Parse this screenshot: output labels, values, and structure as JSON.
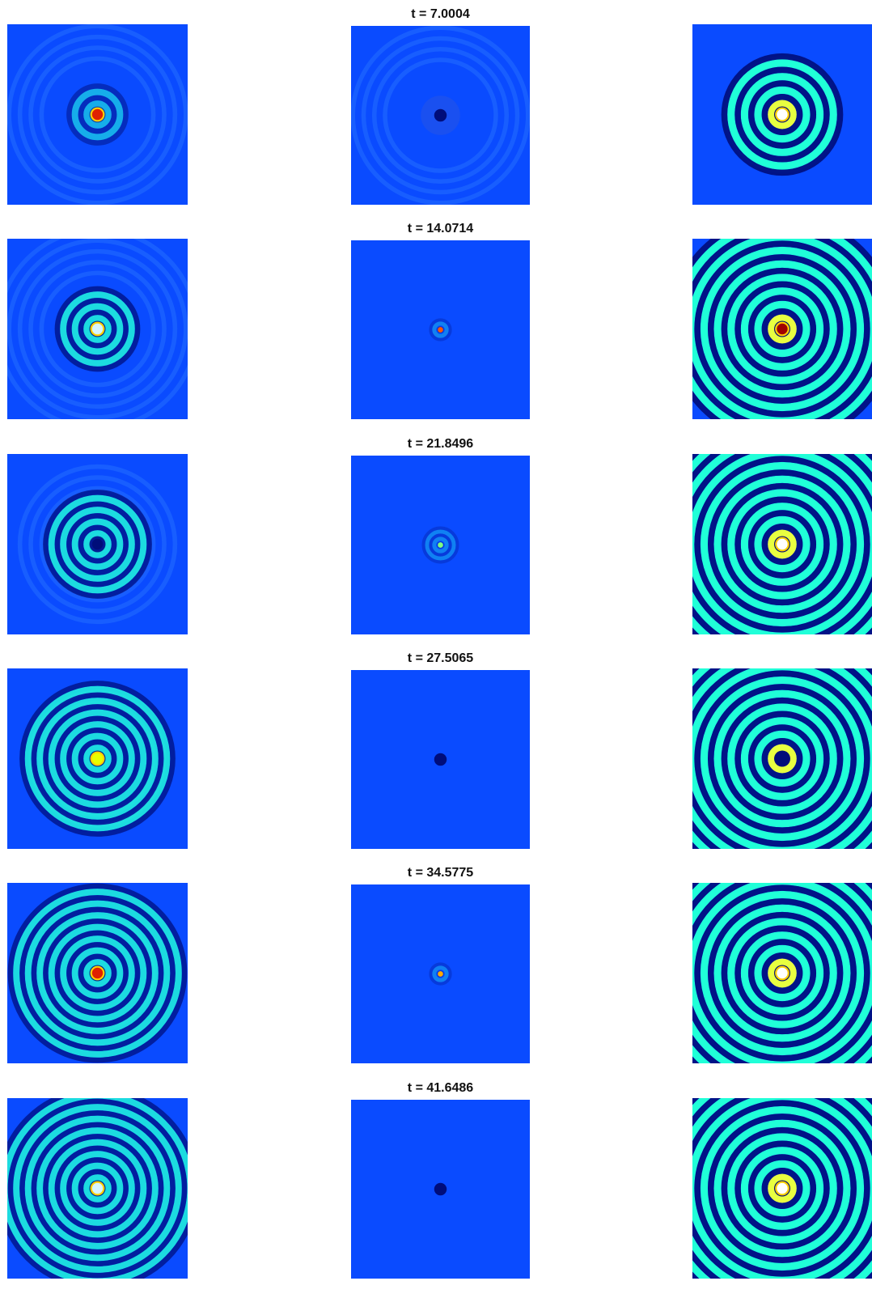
{
  "chart_data": {
    "type": "heatmap",
    "layout": "6 rows x 3 columns of square field snapshots; title printed above the middle column only",
    "colormap": "jet",
    "background_color": "#0a4bff",
    "titles": [
      "t = 7.0004",
      "t = 14.0714",
      "t = 21.8496",
      "t = 27.5065",
      "t = 34.5775",
      "t = 41.6486"
    ],
    "rows": [
      {
        "title": "t = 7.0004",
        "panels": [
          {
            "pattern": "rings",
            "center_color": "#e02000",
            "ring_count": 2,
            "ring_contrast": "low",
            "outer_faint_rings": 4
          },
          {
            "pattern": "dark-center",
            "center_color": "#000d7a",
            "ring_count": 0,
            "ring_contrast": "very-low",
            "outer_faint_rings": 4
          },
          {
            "pattern": "rings",
            "center_color": "#ffffff",
            "ring_count": 4,
            "ring_contrast": "high",
            "outer_faint_rings": 1
          }
        ]
      },
      {
        "title": "t = 14.0714",
        "panels": [
          {
            "pattern": "rings",
            "center_color": "#d8f5ff",
            "ring_count": 3,
            "ring_contrast": "medium",
            "outer_faint_rings": 5
          },
          {
            "pattern": "spot",
            "center_color": "#ff5500",
            "ring_count": 1,
            "ring_contrast": "very-low",
            "outer_faint_rings": 0
          },
          {
            "pattern": "rings",
            "center_color": "#a00000",
            "ring_count": 8,
            "ring_contrast": "high",
            "outer_faint_rings": 0
          }
        ]
      },
      {
        "title": "t = 21.8496",
        "panels": [
          {
            "pattern": "rings",
            "center_color": "#000d7a",
            "ring_count": 4,
            "ring_contrast": "medium",
            "outer_faint_rings": 3
          },
          {
            "pattern": "spot",
            "center_color": "#7fff7f",
            "ring_count": 2,
            "ring_contrast": "very-low",
            "outer_faint_rings": 0
          },
          {
            "pattern": "rings",
            "center_color": "#ffffff",
            "ring_count": 9,
            "ring_contrast": "high",
            "outer_faint_rings": 0
          }
        ]
      },
      {
        "title": "t = 27.5065",
        "panels": [
          {
            "pattern": "rings",
            "center_color": "#e8ff00",
            "ring_count": 6,
            "ring_contrast": "medium",
            "outer_faint_rings": 2
          },
          {
            "pattern": "dark-center",
            "center_color": "#000d7a",
            "ring_count": 0,
            "ring_contrast": "none",
            "outer_faint_rings": 0
          },
          {
            "pattern": "rings",
            "center_color": "#000d7a",
            "ring_count": 9,
            "ring_contrast": "high",
            "outer_faint_rings": 0
          }
        ]
      },
      {
        "title": "t = 34.5775",
        "panels": [
          {
            "pattern": "rings",
            "center_color": "#e02000",
            "ring_count": 7,
            "ring_contrast": "medium",
            "outer_faint_rings": 1
          },
          {
            "pattern": "spot",
            "center_color": "#ffaa00",
            "ring_count": 1,
            "ring_contrast": "very-low",
            "outer_faint_rings": 0
          },
          {
            "pattern": "rings",
            "center_color": "#ffffff",
            "ring_count": 9,
            "ring_contrast": "high",
            "outer_faint_rings": 0
          }
        ]
      },
      {
        "title": "t = 41.6486",
        "panels": [
          {
            "pattern": "rings",
            "center_color": "#d8f5ff",
            "ring_count": 8,
            "ring_contrast": "medium",
            "outer_faint_rings": 0
          },
          {
            "pattern": "dark-center",
            "center_color": "#000d7a",
            "ring_count": 0,
            "ring_contrast": "none",
            "outer_faint_rings": 0
          },
          {
            "pattern": "rings",
            "center_color": "#ffffff",
            "ring_count": 9,
            "ring_contrast": "high",
            "outer_faint_rings": 0
          }
        ]
      }
    ]
  }
}
